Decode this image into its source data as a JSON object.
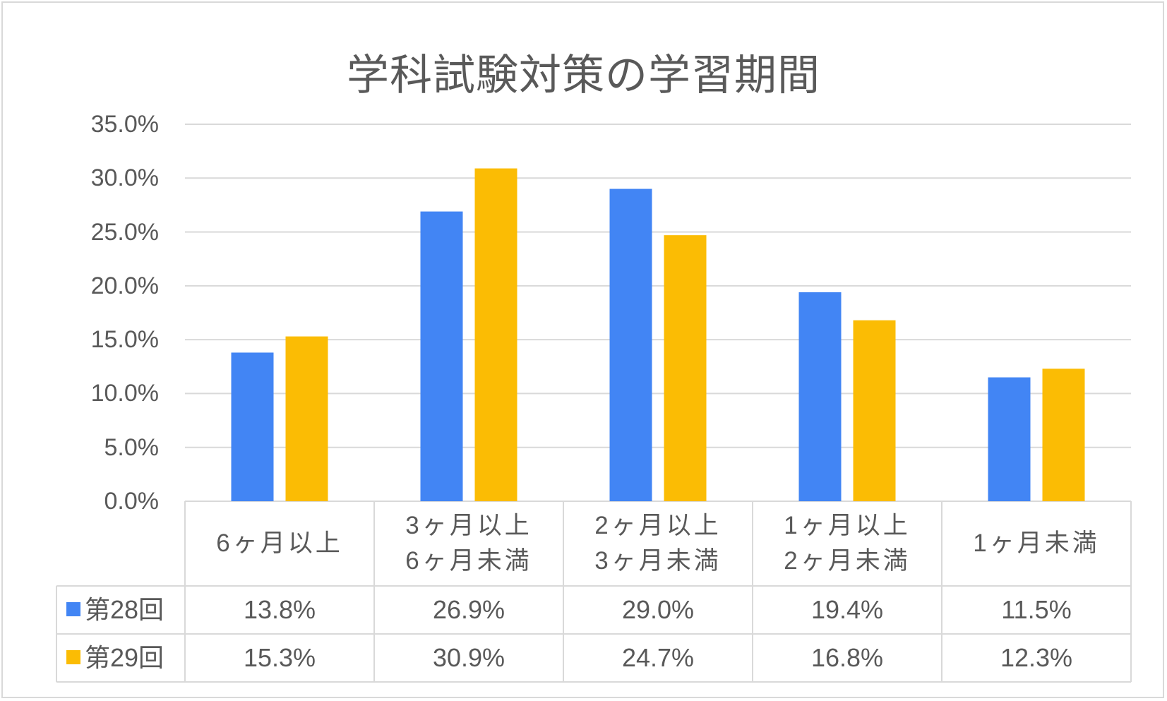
{
  "chart_data": {
    "type": "bar",
    "title": "学科試験対策の学習期間",
    "categories": [
      "6ヶ月以上",
      "3ヶ月以上\n6ヶ月未満",
      "2ヶ月以上\n3ヶ月未満",
      "1ヶ月以上\n2ヶ月未満",
      "1ヶ月未満"
    ],
    "series": [
      {
        "name": "第28回",
        "color": "#4285f4",
        "values": [
          13.8,
          26.9,
          29.0,
          19.4,
          11.5
        ],
        "labels": [
          "13.8%",
          "26.9%",
          "29.0%",
          "19.4%",
          "11.5%"
        ]
      },
      {
        "name": "第29回",
        "color": "#fbbc04",
        "values": [
          15.3,
          30.9,
          24.7,
          16.8,
          12.3
        ],
        "labels": [
          "15.3%",
          "30.9%",
          "24.7%",
          "16.8%",
          "12.3%"
        ]
      }
    ],
    "ylim": [
      0,
      35
    ],
    "yticks": [
      "0.0%",
      "5.0%",
      "10.0%",
      "15.0%",
      "20.0%",
      "25.0%",
      "30.0%",
      "35.0%"
    ],
    "grid": true,
    "legend": "data table"
  }
}
